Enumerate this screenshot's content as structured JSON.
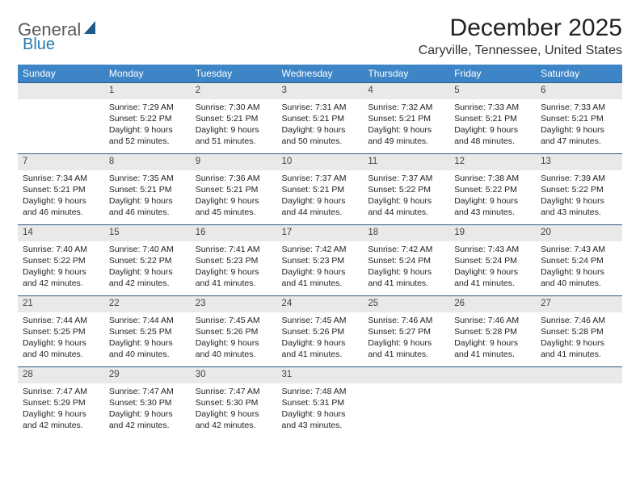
{
  "logo": {
    "text1": "General",
    "text2": "Blue",
    "color_general": "#5a5a5a",
    "color_blue": "#2a7ab0",
    "shape_color": "#1e5a8a"
  },
  "title": "December 2025",
  "location": "Caryville, Tennessee, United States",
  "colors": {
    "header_bg": "#3d85c6",
    "header_text": "#ffffff",
    "daynum_bg": "#e9e9e9",
    "day_border": "#2a5d8a",
    "page_bg": "#ffffff"
  },
  "day_headers": [
    "Sunday",
    "Monday",
    "Tuesday",
    "Wednesday",
    "Thursday",
    "Friday",
    "Saturday"
  ],
  "weeks": [
    {
      "nums": [
        "",
        "1",
        "2",
        "3",
        "4",
        "5",
        "6"
      ],
      "cells": [
        null,
        {
          "sunrise": "Sunrise: 7:29 AM",
          "sunset": "Sunset: 5:22 PM",
          "day1": "Daylight: 9 hours",
          "day2": "and 52 minutes."
        },
        {
          "sunrise": "Sunrise: 7:30 AM",
          "sunset": "Sunset: 5:21 PM",
          "day1": "Daylight: 9 hours",
          "day2": "and 51 minutes."
        },
        {
          "sunrise": "Sunrise: 7:31 AM",
          "sunset": "Sunset: 5:21 PM",
          "day1": "Daylight: 9 hours",
          "day2": "and 50 minutes."
        },
        {
          "sunrise": "Sunrise: 7:32 AM",
          "sunset": "Sunset: 5:21 PM",
          "day1": "Daylight: 9 hours",
          "day2": "and 49 minutes."
        },
        {
          "sunrise": "Sunrise: 7:33 AM",
          "sunset": "Sunset: 5:21 PM",
          "day1": "Daylight: 9 hours",
          "day2": "and 48 minutes."
        },
        {
          "sunrise": "Sunrise: 7:33 AM",
          "sunset": "Sunset: 5:21 PM",
          "day1": "Daylight: 9 hours",
          "day2": "and 47 minutes."
        }
      ]
    },
    {
      "nums": [
        "7",
        "8",
        "9",
        "10",
        "11",
        "12",
        "13"
      ],
      "cells": [
        {
          "sunrise": "Sunrise: 7:34 AM",
          "sunset": "Sunset: 5:21 PM",
          "day1": "Daylight: 9 hours",
          "day2": "and 46 minutes."
        },
        {
          "sunrise": "Sunrise: 7:35 AM",
          "sunset": "Sunset: 5:21 PM",
          "day1": "Daylight: 9 hours",
          "day2": "and 46 minutes."
        },
        {
          "sunrise": "Sunrise: 7:36 AM",
          "sunset": "Sunset: 5:21 PM",
          "day1": "Daylight: 9 hours",
          "day2": "and 45 minutes."
        },
        {
          "sunrise": "Sunrise: 7:37 AM",
          "sunset": "Sunset: 5:21 PM",
          "day1": "Daylight: 9 hours",
          "day2": "and 44 minutes."
        },
        {
          "sunrise": "Sunrise: 7:37 AM",
          "sunset": "Sunset: 5:22 PM",
          "day1": "Daylight: 9 hours",
          "day2": "and 44 minutes."
        },
        {
          "sunrise": "Sunrise: 7:38 AM",
          "sunset": "Sunset: 5:22 PM",
          "day1": "Daylight: 9 hours",
          "day2": "and 43 minutes."
        },
        {
          "sunrise": "Sunrise: 7:39 AM",
          "sunset": "Sunset: 5:22 PM",
          "day1": "Daylight: 9 hours",
          "day2": "and 43 minutes."
        }
      ]
    },
    {
      "nums": [
        "14",
        "15",
        "16",
        "17",
        "18",
        "19",
        "20"
      ],
      "cells": [
        {
          "sunrise": "Sunrise: 7:40 AM",
          "sunset": "Sunset: 5:22 PM",
          "day1": "Daylight: 9 hours",
          "day2": "and 42 minutes."
        },
        {
          "sunrise": "Sunrise: 7:40 AM",
          "sunset": "Sunset: 5:22 PM",
          "day1": "Daylight: 9 hours",
          "day2": "and 42 minutes."
        },
        {
          "sunrise": "Sunrise: 7:41 AM",
          "sunset": "Sunset: 5:23 PM",
          "day1": "Daylight: 9 hours",
          "day2": "and 41 minutes."
        },
        {
          "sunrise": "Sunrise: 7:42 AM",
          "sunset": "Sunset: 5:23 PM",
          "day1": "Daylight: 9 hours",
          "day2": "and 41 minutes."
        },
        {
          "sunrise": "Sunrise: 7:42 AM",
          "sunset": "Sunset: 5:24 PM",
          "day1": "Daylight: 9 hours",
          "day2": "and 41 minutes."
        },
        {
          "sunrise": "Sunrise: 7:43 AM",
          "sunset": "Sunset: 5:24 PM",
          "day1": "Daylight: 9 hours",
          "day2": "and 41 minutes."
        },
        {
          "sunrise": "Sunrise: 7:43 AM",
          "sunset": "Sunset: 5:24 PM",
          "day1": "Daylight: 9 hours",
          "day2": "and 40 minutes."
        }
      ]
    },
    {
      "nums": [
        "21",
        "22",
        "23",
        "24",
        "25",
        "26",
        "27"
      ],
      "cells": [
        {
          "sunrise": "Sunrise: 7:44 AM",
          "sunset": "Sunset: 5:25 PM",
          "day1": "Daylight: 9 hours",
          "day2": "and 40 minutes."
        },
        {
          "sunrise": "Sunrise: 7:44 AM",
          "sunset": "Sunset: 5:25 PM",
          "day1": "Daylight: 9 hours",
          "day2": "and 40 minutes."
        },
        {
          "sunrise": "Sunrise: 7:45 AM",
          "sunset": "Sunset: 5:26 PM",
          "day1": "Daylight: 9 hours",
          "day2": "and 40 minutes."
        },
        {
          "sunrise": "Sunrise: 7:45 AM",
          "sunset": "Sunset: 5:26 PM",
          "day1": "Daylight: 9 hours",
          "day2": "and 41 minutes."
        },
        {
          "sunrise": "Sunrise: 7:46 AM",
          "sunset": "Sunset: 5:27 PM",
          "day1": "Daylight: 9 hours",
          "day2": "and 41 minutes."
        },
        {
          "sunrise": "Sunrise: 7:46 AM",
          "sunset": "Sunset: 5:28 PM",
          "day1": "Daylight: 9 hours",
          "day2": "and 41 minutes."
        },
        {
          "sunrise": "Sunrise: 7:46 AM",
          "sunset": "Sunset: 5:28 PM",
          "day1": "Daylight: 9 hours",
          "day2": "and 41 minutes."
        }
      ]
    },
    {
      "nums": [
        "28",
        "29",
        "30",
        "31",
        "",
        "",
        ""
      ],
      "cells": [
        {
          "sunrise": "Sunrise: 7:47 AM",
          "sunset": "Sunset: 5:29 PM",
          "day1": "Daylight: 9 hours",
          "day2": "and 42 minutes."
        },
        {
          "sunrise": "Sunrise: 7:47 AM",
          "sunset": "Sunset: 5:30 PM",
          "day1": "Daylight: 9 hours",
          "day2": "and 42 minutes."
        },
        {
          "sunrise": "Sunrise: 7:47 AM",
          "sunset": "Sunset: 5:30 PM",
          "day1": "Daylight: 9 hours",
          "day2": "and 42 minutes."
        },
        {
          "sunrise": "Sunrise: 7:48 AM",
          "sunset": "Sunset: 5:31 PM",
          "day1": "Daylight: 9 hours",
          "day2": "and 43 minutes."
        },
        null,
        null,
        null
      ]
    }
  ]
}
